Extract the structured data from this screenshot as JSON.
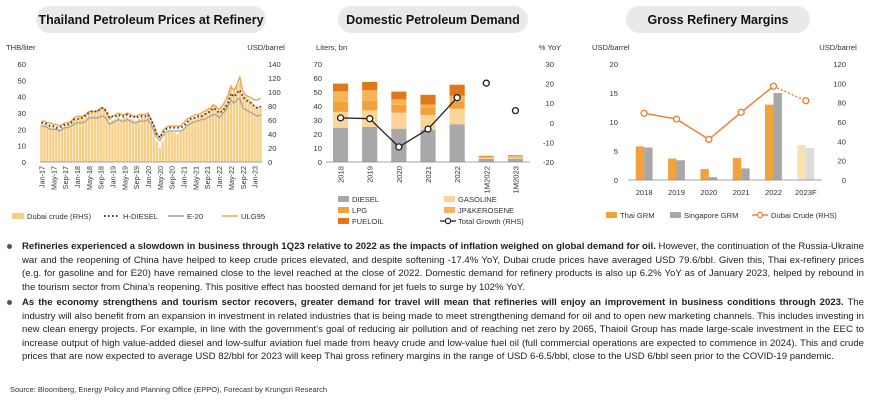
{
  "titles": {
    "c1": "Thailand Petroleum Prices at Refinery",
    "c2": "Domestic Petroleum Demand",
    "c3": "Gross Refinery Margins"
  },
  "chart_data": [
    {
      "id": "c1",
      "type": "bar+line",
      "title": "Thailand Petroleum Prices at Refinery",
      "left_unit": "THB/liter",
      "right_unit": "USD/barrel",
      "left_ticks": [
        0,
        10,
        20,
        30,
        40,
        50,
        60
      ],
      "right_ticks": [
        0,
        20,
        40,
        60,
        80,
        100,
        120,
        140
      ],
      "x_tick_labels": [
        "Jan-17",
        "May-17",
        "Sep-17",
        "Jan-18",
        "May-18",
        "Sep-18",
        "Jan-19",
        "May-19",
        "Sep-19",
        "Jan-20",
        "May-20",
        "Sep-20",
        "Jan-21",
        "May-21",
        "Sep-21",
        "Jan-22",
        "May-22",
        "Sep-22",
        "Jan-23"
      ],
      "legend": [
        "Dubai crude (RHS)",
        "H-DIESEL",
        "E-20",
        "ULG95"
      ],
      "dubai_crude_usd": [
        54,
        54,
        53,
        51,
        50,
        49,
        47,
        50,
        53,
        54,
        56,
        60,
        62,
        64,
        63,
        69,
        73,
        73,
        72,
        74,
        78,
        77,
        71,
        57,
        60,
        62,
        66,
        62,
        64,
        65,
        62,
        61,
        59,
        62,
        64,
        64,
        66,
        56,
        44,
        30,
        20,
        30,
        40,
        43,
        44,
        42,
        40,
        44,
        48,
        54,
        60,
        62,
        64,
        66,
        68,
        70,
        73,
        76,
        81,
        79,
        72,
        78,
        84,
        95,
        110,
        104,
        110,
        113,
        98,
        96,
        90,
        86,
        80,
        79,
        80
      ],
      "diesel_thb": [
        24,
        24,
        23,
        22,
        22,
        21,
        21,
        22,
        23,
        23,
        24,
        26,
        26,
        27,
        27,
        29,
        30,
        31,
        31,
        31,
        33,
        33,
        31,
        27,
        28,
        28,
        29,
        28,
        28,
        29,
        28,
        28,
        27,
        28,
        28,
        28,
        29,
        26,
        22,
        17,
        15,
        18,
        20,
        21,
        21,
        21,
        21,
        21,
        22,
        24,
        26,
        27,
        27,
        28,
        28,
        29,
        30,
        31,
        33,
        32,
        30,
        31,
        33,
        36,
        42,
        40,
        42,
        44,
        40,
        38,
        37,
        36,
        34,
        33,
        34
      ],
      "e20_thb": [
        22,
        22,
        21,
        20,
        20,
        20,
        19,
        20,
        21,
        21,
        22,
        23,
        24,
        24,
        24,
        25,
        27,
        27,
        27,
        27,
        28,
        28,
        26,
        23,
        24,
        25,
        26,
        25,
        25,
        26,
        25,
        24,
        24,
        25,
        25,
        25,
        26,
        23,
        19,
        15,
        13,
        16,
        18,
        19,
        19,
        19,
        19,
        19,
        20,
        22,
        23,
        24,
        25,
        25,
        26,
        26,
        27,
        28,
        29,
        29,
        27,
        29,
        31,
        34,
        38,
        36,
        38,
        39,
        33,
        32,
        31,
        30,
        29,
        28,
        29
      ],
      "ulg95_thb": [
        25,
        25,
        24,
        24,
        23,
        23,
        22,
        23,
        24,
        24,
        25,
        27,
        28,
        28,
        28,
        29,
        31,
        31,
        31,
        31,
        33,
        33,
        30,
        26,
        28,
        29,
        30,
        29,
        29,
        30,
        29,
        28,
        28,
        29,
        29,
        29,
        30,
        26,
        22,
        17,
        15,
        19,
        21,
        22,
        22,
        22,
        22,
        22,
        24,
        26,
        27,
        28,
        29,
        29,
        30,
        31,
        32,
        33,
        35,
        34,
        32,
        34,
        37,
        41,
        46,
        44,
        47,
        52,
        43,
        41,
        40,
        39,
        38,
        38,
        39
      ]
    },
    {
      "id": "c2",
      "type": "stacked bar+line",
      "title": "Domestic Petroleum Demand",
      "left_unit": "Liters, bn",
      "right_unit": "% YoY",
      "left_ticks": [
        0,
        10,
        20,
        30,
        40,
        50,
        60,
        70
      ],
      "right_ticks": [
        -20,
        -10,
        0,
        10,
        20,
        30
      ],
      "categories": [
        "2018",
        "2019",
        "2020",
        "2021",
        "2022",
        "1M2022",
        "1M2023"
      ],
      "series": [
        {
          "name": "DIESEL",
          "color": "#a8a8a8",
          "values": [
            24.5,
            25.1,
            23.8,
            22.9,
            27.0,
            2.2,
            2.3
          ]
        },
        {
          "name": "GASOLINE",
          "color": "#fbd49a",
          "values": [
            11.3,
            11.8,
            11.4,
            10.7,
            11.0,
            0.9,
            0.9
          ]
        },
        {
          "name": "LPG",
          "color": "#f2a23c",
          "values": [
            7.2,
            6.7,
            5.6,
            5.4,
            5.3,
            0.5,
            0.5
          ]
        },
        {
          "name": "JP&KEROSENE",
          "color": "#f7b456",
          "values": [
            7.5,
            7.6,
            3.9,
            2.0,
            4.0,
            0.2,
            0.5
          ]
        },
        {
          "name": "FUELOIL",
          "color": "#e07818",
          "values": [
            5.5,
            6.0,
            5.6,
            7.0,
            7.9,
            0.6,
            0.6
          ]
        }
      ],
      "total_growth": {
        "name": "Total Growth (RHS)",
        "values": [
          2.5,
          2.1,
          -12.3,
          -3.2,
          12.8,
          20.2,
          6.2
        ]
      }
    },
    {
      "id": "c3",
      "type": "bar+line",
      "title": "Gross Refinery Margins",
      "left_unit": "USD/barrel",
      "right_unit": "USD/barrel",
      "left_ticks": [
        0,
        5,
        10,
        15,
        20
      ],
      "right_ticks": [
        0,
        20,
        40,
        60,
        80,
        100,
        120
      ],
      "categories": [
        "2018",
        "2019",
        "2020",
        "2021",
        "2022",
        "2023F"
      ],
      "series": [
        {
          "name": "Thai GRM",
          "color": "#f2a23c",
          "values": [
            5.8,
            3.7,
            1.9,
            3.8,
            13.0,
            6.0
          ]
        },
        {
          "name": "Singapore GRM",
          "color": "#a8a8a8",
          "values": [
            5.6,
            3.4,
            0.5,
            2.0,
            15.0,
            5.5
          ]
        }
      ],
      "dubai_crude": {
        "name": "Dubai Crude (RHS)",
        "color": "#f07c2a",
        "values": [
          69,
          63,
          42,
          70,
          97,
          82
        ]
      }
    }
  ],
  "paragraphs": {
    "p1_bold": "Refineries experienced a slowdown in business through 1Q23 relative to 2022 as the impacts of inflation weighed on global demand for oil.",
    "p1_rest": " However, the continuation of the Russia-Ukraine war and the reopening of China have helped to keep crude prices elevated, and despite softening -17.4% YoY, Dubai crude prices have averaged USD 79.6/bbl. Given this, Thai ex-refinery prices (e.g. for gasoline and for E20) have remained close to the level reached at the close of 2022. Domestic demand for refinery products is also up 6.2% YoY as of January 2023, helped by rebound in the tourism sector from China’s reopening. This positive effect has boosted demand for jet fuels to surge by 102% YoY.",
    "p2_bold": "As the economy strengthens and tourism sector recovers, greater demand for travel will mean that refineries will enjoy an improvement in business conditions through 2023.",
    "p2_rest": " The industry will also benefit from an expansion in investment in related industries that is being made to meet strengthening demand for oil and to open new marketing channels. This includes investing in new clean energy projects. For example, in line with the government’s goal of reducing air pollution and of reaching net zero by 2065, Thaioil Group has made large-scale investment in the EEC to increase output of high value-added diesel and low-sulfur aviation fuel made from heavy crude and low-value fuel oil (full commercial operations are expected to commence in 2024). This and crude prices that are now expected to average USD 82/bbl for 2023 will keep Thai gross refinery margins in the range of USD 6-6.5/bbl, close to the USD 6/bbl seen prior to the COVID-19 pandemic."
  },
  "source": "Source: Bloomberg, Energy Policy and Planning Office (EPPO), Forecast by Krungsri Research"
}
